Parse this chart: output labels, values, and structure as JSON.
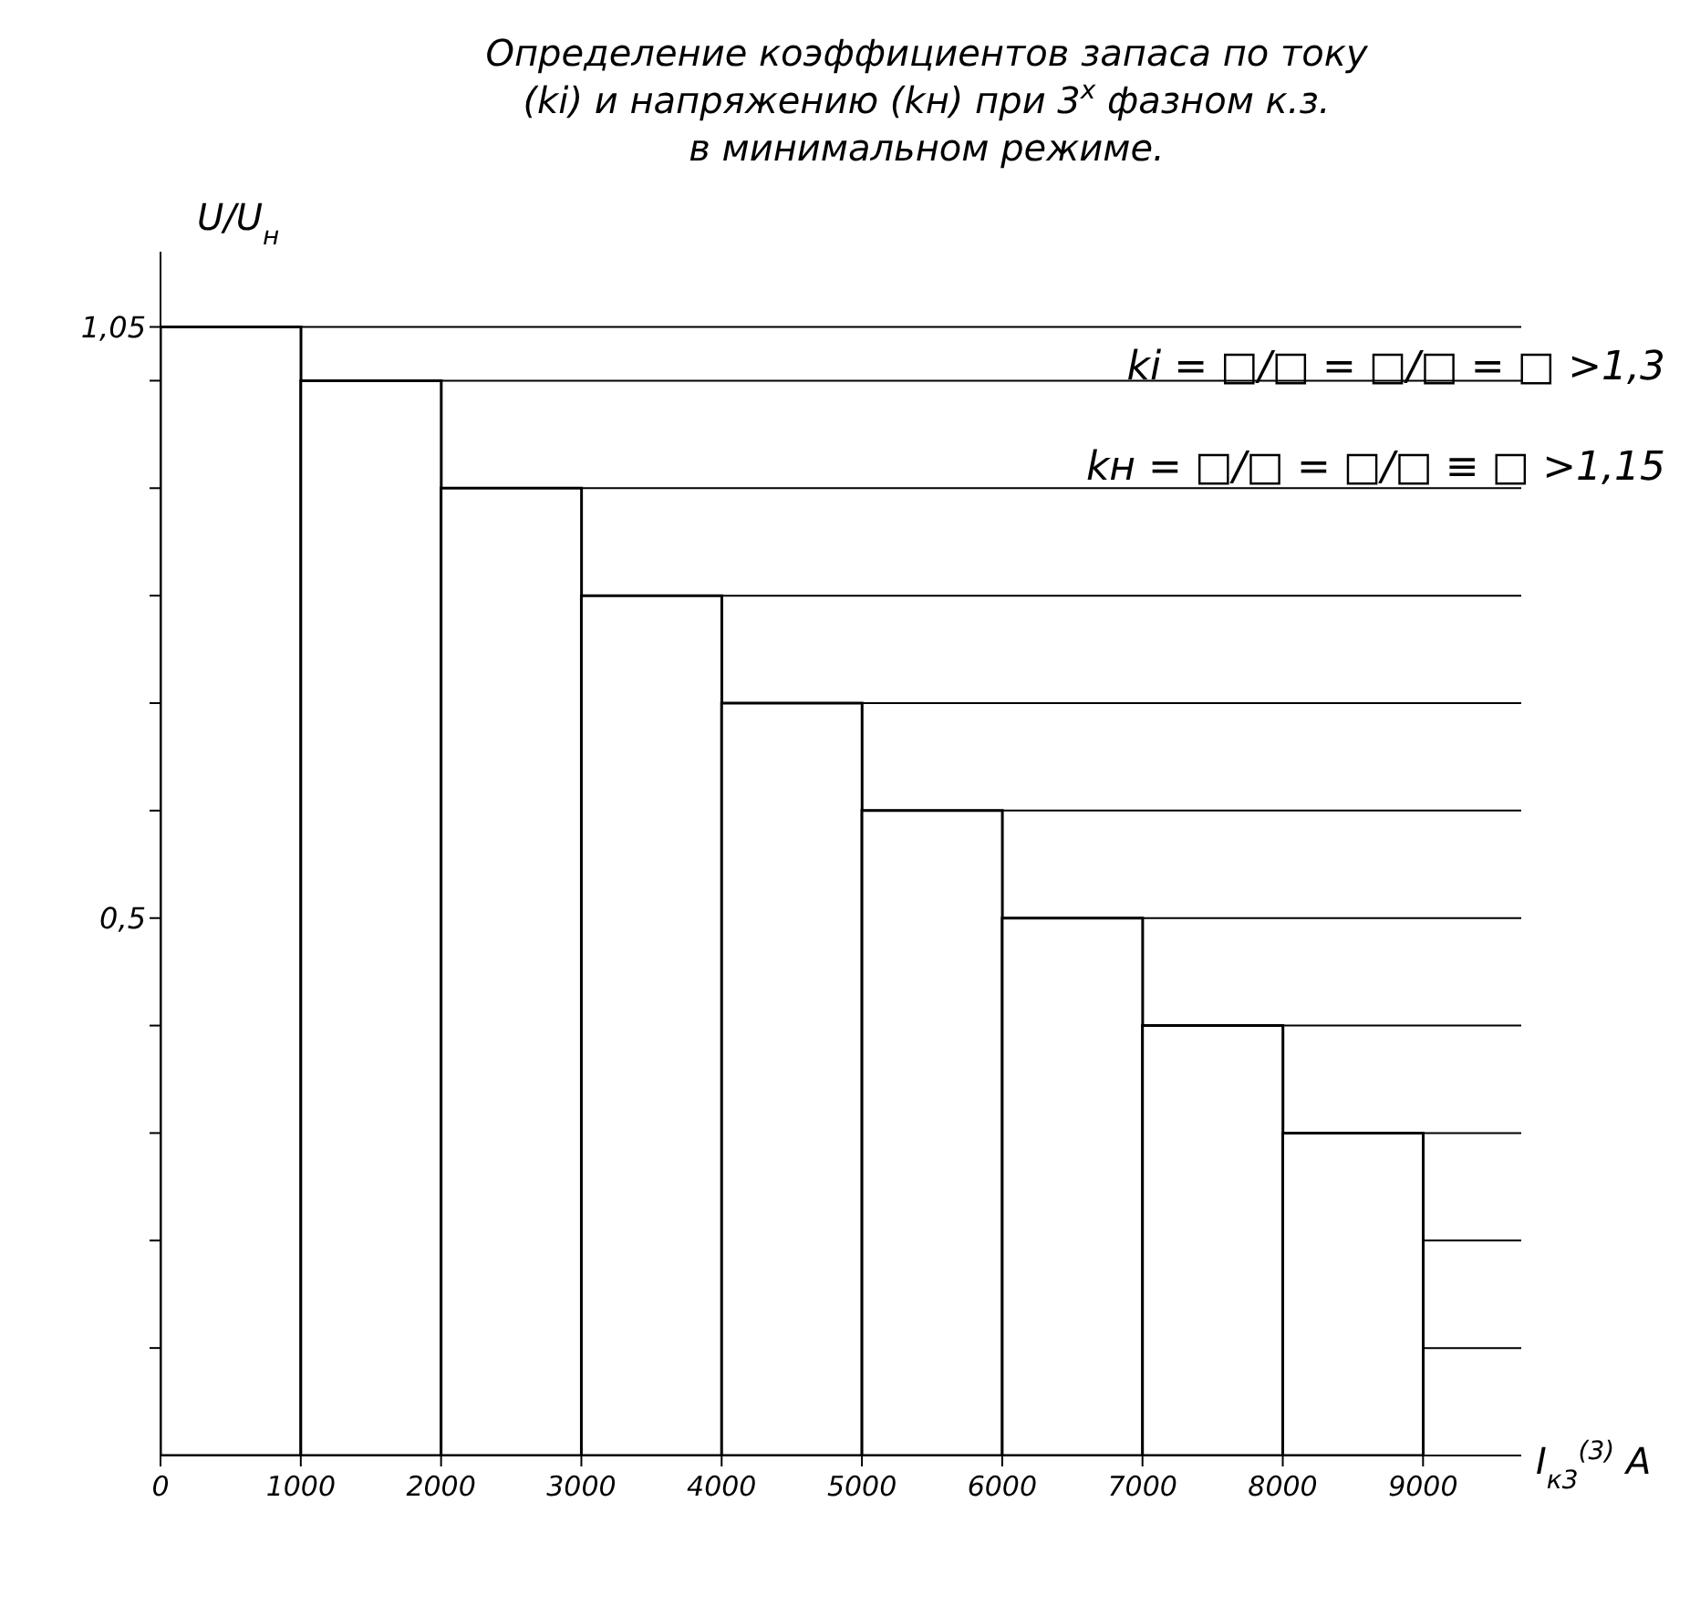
{
  "chart_data": {
    "type": "histogram",
    "title": "Определение коэффициентов запаса по току (ki) и напряжению (kн) при 3$^{х}$ фазном к.з. в минимальном режиме.",
    "xlabel": "I$_{к3}$$^{(3)}$ A",
    "ylabel": "U/U$_{н}$",
    "bins": [
      0,
      1000,
      2000,
      3000,
      4000,
      5000,
      6000,
      7000,
      8000,
      9000
    ],
    "values": [
      1.05,
      1.0,
      0.9,
      0.8,
      0.7,
      0.6,
      0.5,
      0.4,
      0.3
    ],
    "color": "#ffffff",
    "xlim": [
      0,
      9700
    ],
    "ylim": [
      0,
      1.12
    ],
    "xticks": [
      0,
      1000,
      2000,
      3000,
      4000,
      5000,
      6000,
      7000,
      8000,
      9000
    ],
    "yticks": [
      {
        "value": 0.1,
        "label": null
      },
      {
        "value": 0.2,
        "label": null
      },
      {
        "value": 0.3,
        "label": null
      },
      {
        "value": 0.4,
        "label": null
      },
      {
        "value": 0.5,
        "label": "0,5"
      },
      {
        "value": 0.6,
        "label": null
      },
      {
        "value": 0.7,
        "label": null
      },
      {
        "value": 0.8,
        "label": null
      },
      {
        "value": 0.9,
        "label": null
      },
      {
        "value": 1.0,
        "label": null
      },
      {
        "value": 1.05,
        "label": "1,05"
      }
    ],
    "grid": "y",
    "annotations": [
      "ki = □/□ = □/□ = □ >1,3",
      "kн = □/□ = □/□ ≡ □ >1,15"
    ]
  }
}
